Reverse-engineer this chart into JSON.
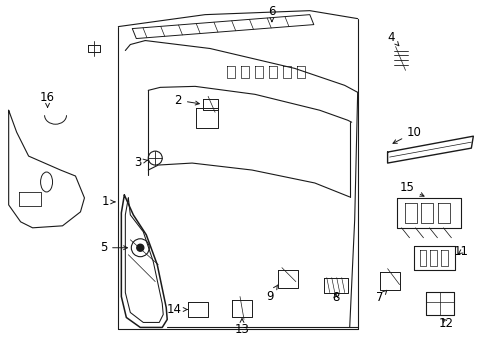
{
  "background_color": "#ffffff",
  "line_color": "#1a1a1a",
  "text_color": "#000000",
  "font_size": 8.5,
  "lw": 0.8,
  "fig_w": 4.89,
  "fig_h": 3.6,
  "dpi": 100,
  "label_positions": {
    "1": [
      0.148,
      0.47,
      0.2,
      0.47
    ],
    "2": [
      0.33,
      0.685,
      0.36,
      0.685
    ],
    "3": [
      0.23,
      0.575,
      0.255,
      0.545
    ],
    "4": [
      0.8,
      0.9,
      0.8,
      0.87
    ],
    "5": [
      0.098,
      0.355,
      0.135,
      0.355
    ],
    "6": [
      0.33,
      0.95,
      0.33,
      0.92
    ],
    "7": [
      0.72,
      0.115,
      0.7,
      0.145
    ],
    "8": [
      0.634,
      0.115,
      0.62,
      0.145
    ],
    "9": [
      0.548,
      0.115,
      0.558,
      0.148
    ],
    "10": [
      0.84,
      0.745,
      0.84,
      0.715
    ],
    "11": [
      0.94,
      0.32,
      0.898,
      0.32
    ],
    "12": [
      0.87,
      0.12,
      0.87,
      0.148
    ],
    "13": [
      0.43,
      0.112,
      0.43,
      0.145
    ],
    "14": [
      0.288,
      0.132,
      0.32,
      0.132
    ],
    "15": [
      0.85,
      0.475,
      0.85,
      0.44
    ],
    "16": [
      0.062,
      0.79,
      0.082,
      0.76
    ]
  }
}
